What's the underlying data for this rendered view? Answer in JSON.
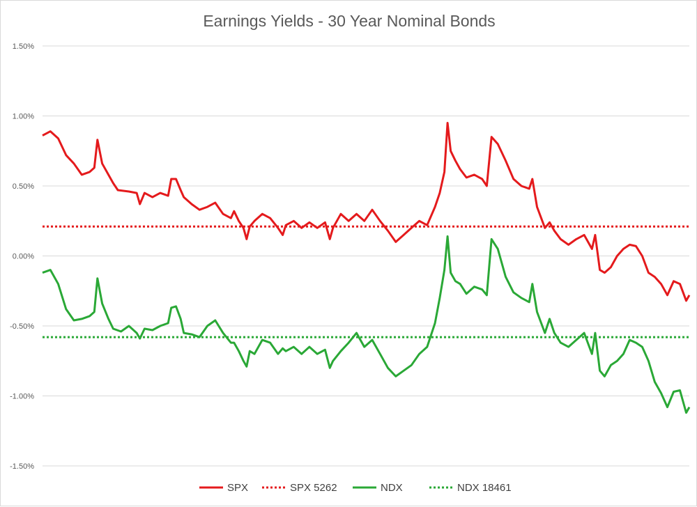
{
  "chart_data": {
    "type": "line",
    "title": "Earnings Yields - 30 Year Nominal Bonds",
    "xlabel": "",
    "ylabel": "",
    "ylim": [
      -1.5,
      1.5
    ],
    "y_ticks": [
      "1.50%",
      "1.00%",
      "0.50%",
      "0.00%",
      "-0.50%",
      "-1.00%",
      "-1.50%"
    ],
    "y_tick_values": [
      1.5,
      1.0,
      0.5,
      0.0,
      -0.5,
      -1.0,
      -1.5
    ],
    "grid": true,
    "legend_position": "bottom",
    "x_count": 300,
    "series": [
      {
        "name": "SPX",
        "color": "#e41a1c",
        "style": "solid",
        "points": [
          [
            0,
            0.86
          ],
          [
            5,
            0.89
          ],
          [
            10,
            0.84
          ],
          [
            15,
            0.72
          ],
          [
            20,
            0.66
          ],
          [
            25,
            0.58
          ],
          [
            30,
            0.6
          ],
          [
            33,
            0.63
          ],
          [
            35,
            0.83
          ],
          [
            38,
            0.66
          ],
          [
            42,
            0.58
          ],
          [
            45,
            0.52
          ],
          [
            48,
            0.47
          ],
          [
            55,
            0.46
          ],
          [
            60,
            0.45
          ],
          [
            62,
            0.37
          ],
          [
            65,
            0.45
          ],
          [
            70,
            0.42
          ],
          [
            75,
            0.45
          ],
          [
            80,
            0.43
          ],
          [
            82,
            0.55
          ],
          [
            85,
            0.55
          ],
          [
            88,
            0.47
          ],
          [
            90,
            0.42
          ],
          [
            95,
            0.37
          ],
          [
            100,
            0.33
          ],
          [
            105,
            0.35
          ],
          [
            110,
            0.38
          ],
          [
            115,
            0.3
          ],
          [
            120,
            0.27
          ],
          [
            122,
            0.32
          ],
          [
            125,
            0.25
          ],
          [
            128,
            0.2
          ],
          [
            130,
            0.12
          ],
          [
            132,
            0.21
          ],
          [
            135,
            0.25
          ],
          [
            140,
            0.3
          ],
          [
            145,
            0.27
          ],
          [
            150,
            0.2
          ],
          [
            153,
            0.15
          ],
          [
            155,
            0.22
          ],
          [
            160,
            0.25
          ],
          [
            165,
            0.2
          ],
          [
            170,
            0.24
          ],
          [
            175,
            0.2
          ],
          [
            180,
            0.24
          ],
          [
            183,
            0.12
          ],
          [
            185,
            0.2
          ],
          [
            190,
            0.3
          ],
          [
            195,
            0.25
          ],
          [
            200,
            0.3
          ],
          [
            205,
            0.25
          ],
          [
            210,
            0.33
          ],
          [
            215,
            0.25
          ],
          [
            220,
            0.18
          ],
          [
            225,
            0.1
          ],
          [
            230,
            0.15
          ],
          [
            235,
            0.2
          ],
          [
            240,
            0.25
          ],
          [
            245,
            0.22
          ],
          [
            250,
            0.35
          ],
          [
            253,
            0.45
          ],
          [
            256,
            0.6
          ],
          [
            258,
            0.95
          ],
          [
            260,
            0.75
          ],
          [
            263,
            0.68
          ],
          [
            266,
            0.62
          ],
          [
            270,
            0.56
          ],
          [
            275,
            0.58
          ],
          [
            280,
            0.55
          ],
          [
            283,
            0.5
          ],
          [
            286,
            0.85
          ],
          [
            290,
            0.8
          ],
          [
            295,
            0.68
          ],
          [
            300,
            0.55
          ],
          [
            305,
            0.5
          ],
          [
            310,
            0.48
          ],
          [
            312,
            0.55
          ],
          [
            315,
            0.35
          ],
          [
            320,
            0.2
          ],
          [
            323,
            0.24
          ],
          [
            326,
            0.18
          ],
          [
            330,
            0.12
          ],
          [
            335,
            0.08
          ],
          [
            340,
            0.12
          ],
          [
            345,
            0.15
          ],
          [
            350,
            0.05
          ],
          [
            352,
            0.15
          ],
          [
            355,
            -0.1
          ],
          [
            358,
            -0.12
          ],
          [
            362,
            -0.08
          ],
          [
            366,
            0.0
          ],
          [
            370,
            0.05
          ],
          [
            374,
            0.08
          ],
          [
            378,
            0.07
          ],
          [
            382,
            0.0
          ],
          [
            386,
            -0.12
          ],
          [
            390,
            -0.15
          ],
          [
            394,
            -0.2
          ],
          [
            398,
            -0.28
          ],
          [
            402,
            -0.18
          ],
          [
            406,
            -0.2
          ],
          [
            410,
            -0.32
          ],
          [
            412,
            -0.28
          ]
        ]
      },
      {
        "name": "SPX 5262",
        "color": "#e41a1c",
        "style": "dotted",
        "value": 0.21
      },
      {
        "name": "NDX",
        "color": "#2aa836",
        "style": "solid",
        "points": [
          [
            0,
            -0.12
          ],
          [
            5,
            -0.1
          ],
          [
            10,
            -0.2
          ],
          [
            15,
            -0.38
          ],
          [
            20,
            -0.46
          ],
          [
            25,
            -0.45
          ],
          [
            30,
            -0.43
          ],
          [
            33,
            -0.4
          ],
          [
            35,
            -0.16
          ],
          [
            38,
            -0.34
          ],
          [
            42,
            -0.45
          ],
          [
            45,
            -0.52
          ],
          [
            50,
            -0.54
          ],
          [
            55,
            -0.5
          ],
          [
            60,
            -0.55
          ],
          [
            62,
            -0.59
          ],
          [
            65,
            -0.52
          ],
          [
            70,
            -0.53
          ],
          [
            75,
            -0.5
          ],
          [
            80,
            -0.48
          ],
          [
            82,
            -0.37
          ],
          [
            85,
            -0.36
          ],
          [
            88,
            -0.45
          ],
          [
            90,
            -0.55
          ],
          [
            95,
            -0.56
          ],
          [
            100,
            -0.58
          ],
          [
            105,
            -0.5
          ],
          [
            110,
            -0.46
          ],
          [
            115,
            -0.55
          ],
          [
            120,
            -0.62
          ],
          [
            122,
            -0.62
          ],
          [
            125,
            -0.68
          ],
          [
            128,
            -0.75
          ],
          [
            130,
            -0.79
          ],
          [
            132,
            -0.68
          ],
          [
            135,
            -0.7
          ],
          [
            140,
            -0.6
          ],
          [
            145,
            -0.62
          ],
          [
            150,
            -0.7
          ],
          [
            153,
            -0.66
          ],
          [
            155,
            -0.68
          ],
          [
            160,
            -0.65
          ],
          [
            165,
            -0.7
          ],
          [
            170,
            -0.65
          ],
          [
            175,
            -0.7
          ],
          [
            180,
            -0.67
          ],
          [
            183,
            -0.8
          ],
          [
            185,
            -0.75
          ],
          [
            190,
            -0.68
          ],
          [
            195,
            -0.62
          ],
          [
            200,
            -0.55
          ],
          [
            205,
            -0.65
          ],
          [
            210,
            -0.6
          ],
          [
            215,
            -0.7
          ],
          [
            220,
            -0.8
          ],
          [
            225,
            -0.86
          ],
          [
            230,
            -0.82
          ],
          [
            235,
            -0.78
          ],
          [
            240,
            -0.7
          ],
          [
            245,
            -0.65
          ],
          [
            250,
            -0.48
          ],
          [
            253,
            -0.3
          ],
          [
            256,
            -0.1
          ],
          [
            258,
            0.14
          ],
          [
            260,
            -0.12
          ],
          [
            263,
            -0.18
          ],
          [
            266,
            -0.2
          ],
          [
            270,
            -0.27
          ],
          [
            275,
            -0.22
          ],
          [
            280,
            -0.24
          ],
          [
            283,
            -0.28
          ],
          [
            286,
            0.12
          ],
          [
            290,
            0.05
          ],
          [
            295,
            -0.15
          ],
          [
            300,
            -0.26
          ],
          [
            305,
            -0.3
          ],
          [
            310,
            -0.33
          ],
          [
            312,
            -0.2
          ],
          [
            315,
            -0.4
          ],
          [
            320,
            -0.55
          ],
          [
            323,
            -0.45
          ],
          [
            326,
            -0.55
          ],
          [
            330,
            -0.62
          ],
          [
            335,
            -0.65
          ],
          [
            340,
            -0.6
          ],
          [
            345,
            -0.55
          ],
          [
            350,
            -0.7
          ],
          [
            352,
            -0.55
          ],
          [
            355,
            -0.82
          ],
          [
            358,
            -0.86
          ],
          [
            362,
            -0.78
          ],
          [
            366,
            -0.75
          ],
          [
            370,
            -0.7
          ],
          [
            374,
            -0.6
          ],
          [
            378,
            -0.62
          ],
          [
            382,
            -0.65
          ],
          [
            386,
            -0.75
          ],
          [
            390,
            -0.9
          ],
          [
            394,
            -0.98
          ],
          [
            398,
            -1.08
          ],
          [
            402,
            -0.97
          ],
          [
            406,
            -0.96
          ],
          [
            410,
            -1.12
          ],
          [
            412,
            -1.08
          ]
        ]
      },
      {
        "name": "NDX 18461",
        "color": "#2aa836",
        "style": "dotted",
        "value": -0.58
      }
    ]
  }
}
